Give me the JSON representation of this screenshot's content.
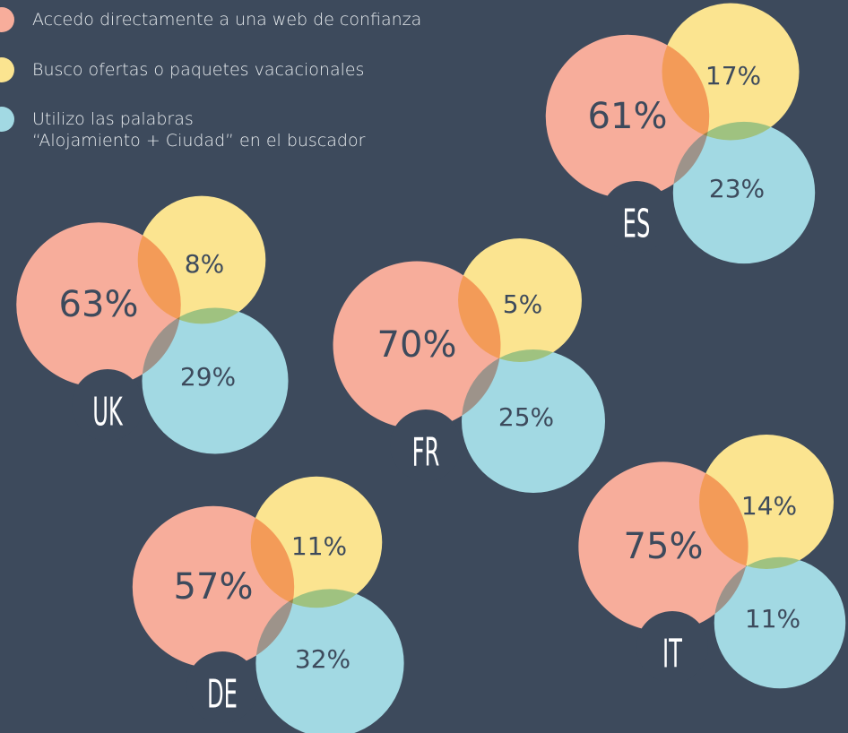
{
  "chart_data": {
    "type": "venn",
    "series": [
      {
        "name": "Accedo directamente a una web de confianza",
        "color": "#f7ad9b"
      },
      {
        "name": "Busco ofertas o paquetes vacacionales",
        "color": "#fbe490"
      },
      {
        "name": "Utilizo las palabras\n“Alojamiento + Ciudad” en el buscador",
        "color": "#a2d9e3"
      }
    ],
    "groups": [
      {
        "label": "ES",
        "values": [
          61,
          17,
          23
        ],
        "value_labels": [
          "61%",
          "17%",
          "23%"
        ]
      },
      {
        "label": "UK",
        "values": [
          63,
          8,
          29
        ],
        "value_labels": [
          "63%",
          "8%",
          "29%"
        ]
      },
      {
        "label": "FR",
        "values": [
          70,
          5,
          25
        ],
        "value_labels": [
          "70%",
          "5%",
          "25%"
        ]
      },
      {
        "label": "DE",
        "values": [
          57,
          11,
          32
        ],
        "value_labels": [
          "57%",
          "11%",
          "32%"
        ]
      },
      {
        "label": "IT",
        "values": [
          75,
          14,
          11
        ],
        "value_labels": [
          "75%",
          "14%",
          "11%"
        ]
      }
    ]
  }
}
